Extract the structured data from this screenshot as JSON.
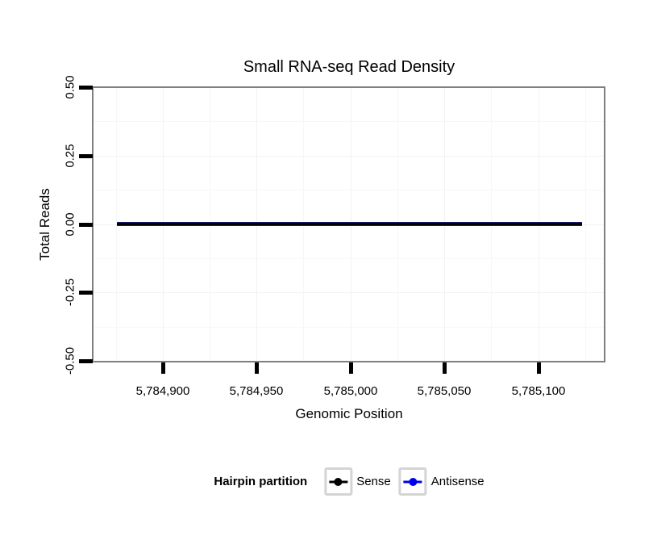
{
  "title": "Small RNA-seq Read Density",
  "axes": {
    "x": {
      "label": "Genomic Position",
      "tick_labels": [
        "5,784,900",
        "5,784,950",
        "5,785,000",
        "5,785,050",
        "5,785,100"
      ]
    },
    "y": {
      "label": "Total Reads",
      "tick_labels": [
        "0.50",
        "0.25",
        "0.00",
        "-0.25",
        "-0.50"
      ]
    }
  },
  "legend": {
    "title": "Hairpin partition",
    "items": [
      {
        "label": "Sense",
        "color": "#000000"
      },
      {
        "label": "Antisense",
        "color": "#0000ee"
      }
    ]
  },
  "colors": {
    "panel_border": "#7f7f7f",
    "tick": "#000000",
    "grid_major": "#f2f2f2",
    "grid_minor": "#f7f7f7",
    "legend_key_border": "#d4d4d4",
    "line_core": "#000000",
    "line_edge": "#1c1c70"
  },
  "chart_data": {
    "type": "line",
    "title": "Small RNA-seq Read Density",
    "xlabel": "Genomic Position",
    "ylabel": "Total Reads",
    "xlim": [
      5784863,
      5785136
    ],
    "ylim": [
      -0.5,
      0.5
    ],
    "x_ticks": [
      5784900,
      5784950,
      5785000,
      5785050,
      5785100
    ],
    "y_ticks": [
      0.5,
      0.25,
      0.0,
      -0.25,
      -0.5
    ],
    "grid": "faint major and minor gridlines on white panel",
    "legend_title": "Hairpin partition",
    "legend_position": "bottom",
    "series": [
      {
        "name": "Sense",
        "color": "#000000",
        "x": [
          5784875,
          5785124
        ],
        "y": [
          0,
          0
        ]
      },
      {
        "name": "Antisense",
        "color": "#0000ee",
        "x": [
          5784875,
          5785124
        ],
        "y": [
          0,
          0
        ]
      }
    ]
  }
}
